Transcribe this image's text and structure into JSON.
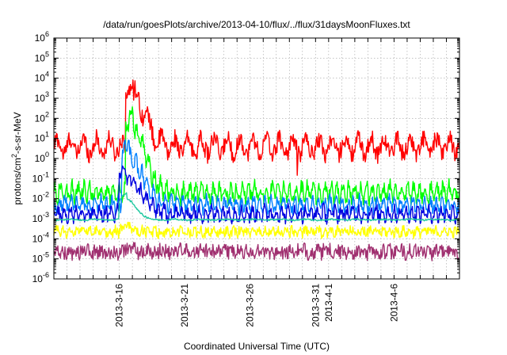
{
  "chart_data": {
    "type": "line",
    "title": "/data/run/goesPlots/archive/2013-04-10/flux/../flux/31daysMoonFluxes.txt",
    "xlabel": "Coordinated Universal Time (UTC)",
    "ylabel_parts": {
      "base": "protons/cm",
      "sup": "2",
      "rest": "-s-sr-MeV"
    },
    "y_scale": "log",
    "ylim_exp": [
      -6,
      6
    ],
    "y_tick_exponents": [
      -6,
      -5,
      -4,
      -3,
      -2,
      -1,
      0,
      1,
      2,
      3,
      4,
      5,
      6
    ],
    "y_tick_base": "10",
    "x_unit": "days since start of plot window",
    "xlim": [
      0,
      31
    ],
    "x_ticks": [
      {
        "x": 5,
        "label": "2013-3-16"
      },
      {
        "x": 10,
        "label": "2013-3-21"
      },
      {
        "x": 15,
        "label": "2013-3-26"
      },
      {
        "x": 20,
        "label": "2013-3-31"
      },
      {
        "x": 21,
        "label": "2013-4-1"
      },
      {
        "x": 26,
        "label": "2013-4-6"
      }
    ],
    "grid": true,
    "series": [
      {
        "color": "#ff0000",
        "base": 0.6,
        "noise": 0.45,
        "period": 1.0,
        "amp": 0.4,
        "peak_x": 6.1,
        "peak_amp": 2.5,
        "peak_w": 0.9,
        "spikes": [
          [
            18.6,
            -1.6
          ]
        ]
      },
      {
        "color": "#00ff00",
        "base": -1.7,
        "noise": 0.35,
        "period": 0.45,
        "amp": 0.35,
        "peak_x": 6.1,
        "peak_amp": 3.1,
        "peak_w": 0.9,
        "spikes": []
      },
      {
        "color": "#0080ff",
        "base": -2.3,
        "noise": 0.3,
        "period": 0.45,
        "amp": 0.3,
        "peak_x": 5.8,
        "peak_amp": 2.3,
        "peak_w": 1.0,
        "spikes": []
      },
      {
        "color": "#0000e0",
        "base": -2.75,
        "noise": 0.3,
        "period": 0.45,
        "amp": 0.25,
        "peak_x": 5.6,
        "peak_amp": 1.7,
        "peak_w": 1.1,
        "spikes": []
      },
      {
        "color": "#20c8a0",
        "base": -3.05,
        "noise": 0.04,
        "period": 2.0,
        "amp": 0.02,
        "peak_x": 5.6,
        "peak_amp": 1.0,
        "peak_w": 0.7,
        "spikes": []
      },
      {
        "color": "#ffff00",
        "base": -3.65,
        "noise": 0.25,
        "period": 0.5,
        "amp": 0.1,
        "peak_x": 5.6,
        "peak_amp": 0.2,
        "peak_w": 0.5,
        "spikes": []
      },
      {
        "color": "#a03070",
        "base": -4.65,
        "noise": 0.35,
        "period": 0.5,
        "amp": 0.1,
        "peak_x": 5.6,
        "peak_amp": 0.1,
        "peak_w": 0.5,
        "spikes": []
      }
    ]
  }
}
